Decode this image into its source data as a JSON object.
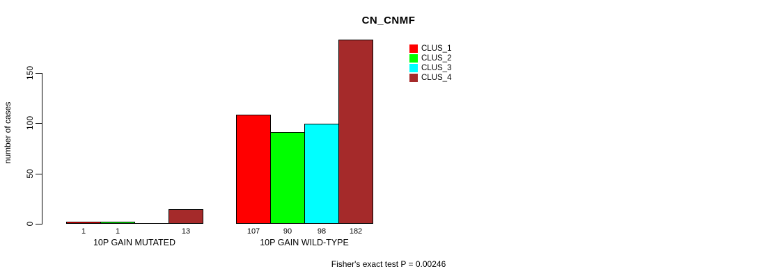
{
  "title": "CN_CNMF",
  "chart_data": {
    "type": "bar",
    "title": "CN_CNMF",
    "xlabel": "",
    "ylabel": "number of cases",
    "ylim": [
      0,
      150
    ],
    "yticks": [
      0,
      50,
      100,
      150
    ],
    "grid": false,
    "legend_position": "top-right-inside",
    "categories": [
      "10P GAIN MUTATED",
      "10P GAIN WILD-TYPE"
    ],
    "series": [
      {
        "name": "CLUS_1",
        "color": "#FF0000",
        "values": [
          1,
          107
        ]
      },
      {
        "name": "CLUS_2",
        "color": "#00FF00",
        "values": [
          1,
          90
        ]
      },
      {
        "name": "CLUS_3",
        "color": "#00FFFF",
        "values": [
          0,
          98
        ]
      },
      {
        "name": "CLUS_4",
        "color": "#A52A2A",
        "values": [
          13,
          182
        ]
      }
    ],
    "bar_value_labels": [
      [
        "1",
        "1",
        "",
        "13"
      ],
      [
        "107",
        "90",
        "98",
        "182"
      ]
    ],
    "annotation": "Fisher's exact test P = 0.00246",
    "colors": {
      "bar_border": "#000000",
      "axis": "#000000",
      "background": "#FFFFFF"
    }
  }
}
